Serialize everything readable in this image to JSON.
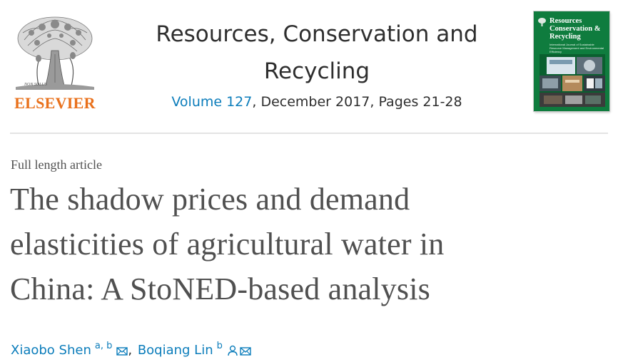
{
  "publisher": {
    "name": "ELSEVIER"
  },
  "journal": {
    "title_line1": "Resources, Conservation and",
    "title_line2": "Recycling",
    "volume_label": "Volume 127",
    "issue_details": ", December 2017, Pages 21-28"
  },
  "cover": {
    "title_line1": "Resources",
    "title_line2": "Conservation &",
    "title_line3": "Recycling",
    "subtitle": "International Journal of Sustainable Resource Management and Environmental Efficiency"
  },
  "article": {
    "type": "Full length article",
    "title_line1": "The shadow prices and demand",
    "title_line2": "elasticities of agricultural water in",
    "title_line3": "China: A StoNED-based analysis"
  },
  "authors": [
    {
      "name": "Xiaobo Shen",
      "affiliations": "a, b",
      "icons": [
        "envelope-icon"
      ]
    },
    {
      "name": "Boqiang Lin",
      "affiliations": "b",
      "icons": [
        "person-icon",
        "envelope-icon"
      ]
    }
  ],
  "separator": ",",
  "colors": {
    "link": "#0c7dbb",
    "publisher_orange": "#e9711c",
    "cover_green": "#0f7c3e",
    "title_gray": "#505050"
  }
}
